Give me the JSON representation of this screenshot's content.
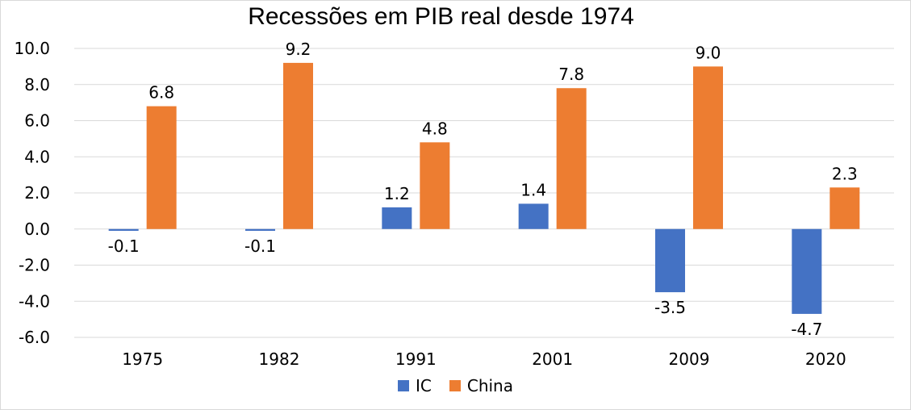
{
  "chart_data": {
    "type": "bar",
    "title": "Recessões em PIB real desde 1974",
    "categories": [
      "1975",
      "1982",
      "1991",
      "2001",
      "2009",
      "2020"
    ],
    "series": [
      {
        "name": "IC",
        "color": "#4472C4",
        "values": [
          -0.1,
          -0.1,
          1.2,
          1.4,
          -3.5,
          -4.7
        ],
        "labels": [
          "-0.1",
          "-0.1",
          "1.2",
          "1.4",
          "-3.5",
          "-4.7"
        ]
      },
      {
        "name": "China",
        "color": "#ED7D31",
        "values": [
          6.8,
          9.2,
          4.8,
          7.8,
          9.0,
          2.3
        ],
        "labels": [
          "6.8",
          "9.2",
          "4.8",
          "7.8",
          "9.0",
          "2.3"
        ]
      }
    ],
    "ylim": [
      -6.0,
      10.0
    ],
    "yticks": [
      "10.0",
      "8.0",
      "6.0",
      "4.0",
      "2.0",
      "0.0",
      "-2.0",
      "-4.0",
      "-6.0"
    ],
    "grid": true,
    "legend": "bottom"
  }
}
